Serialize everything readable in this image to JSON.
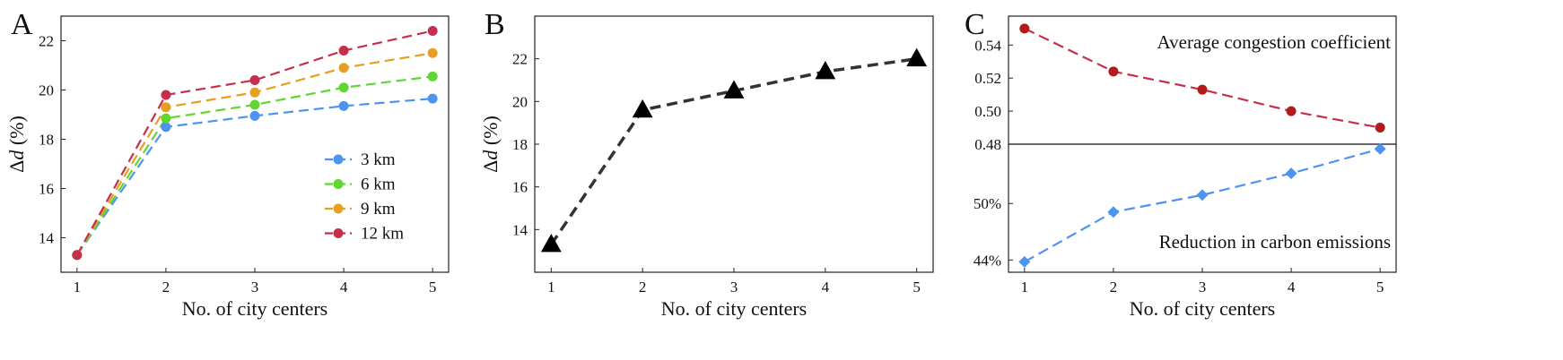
{
  "panels": {
    "A": {
      "letter": "A"
    },
    "B": {
      "letter": "B"
    },
    "C": {
      "letter": "C"
    }
  },
  "chart_data": [
    {
      "id": "A",
      "type": "line",
      "x": [
        1,
        2,
        3,
        4,
        5
      ],
      "xticks": [
        "1",
        "2",
        "3",
        "4",
        "5"
      ],
      "xlabel": "No. of city centers",
      "ylabel": "Δd (%)",
      "yticks": [
        "14",
        "16",
        "18",
        "20",
        "22"
      ],
      "ylim": [
        12.6,
        23.0
      ],
      "series": [
        {
          "name": "3 km",
          "color": "#4d94f0",
          "values": [
            13.3,
            18.5,
            18.95,
            19.35,
            19.65
          ]
        },
        {
          "name": "6 km",
          "color": "#5fd632",
          "values": [
            13.3,
            18.85,
            19.4,
            20.1,
            20.55
          ]
        },
        {
          "name": "9 km",
          "color": "#e69f20",
          "values": [
            13.3,
            19.3,
            19.9,
            20.9,
            21.5
          ]
        },
        {
          "name": "12 km",
          "color": "#c4304c",
          "values": [
            13.3,
            19.8,
            20.4,
            21.6,
            22.4
          ]
        }
      ],
      "legend_position": "lower-right",
      "grid": false
    },
    {
      "id": "B",
      "type": "line",
      "x": [
        1,
        2,
        3,
        4,
        5
      ],
      "xticks": [
        "1",
        "2",
        "3",
        "4",
        "5"
      ],
      "xlabel": "No. of city centers",
      "ylabel": "Δd (%)",
      "yticks": [
        "14",
        "16",
        "18",
        "20",
        "22"
      ],
      "ylim": [
        12.0,
        24.0
      ],
      "series": [
        {
          "color": "#333333",
          "marker": "triangle",
          "values": [
            13.3,
            19.6,
            20.5,
            21.4,
            22.0
          ]
        }
      ],
      "grid": false
    },
    {
      "id": "C-top",
      "type": "line",
      "x": [
        1,
        2,
        3,
        4,
        5
      ],
      "annotation": "Average congestion coefficient",
      "yticks": [
        "0.48",
        "0.50",
        "0.52",
        "0.54"
      ],
      "ylim": [
        0.48,
        0.5575
      ],
      "series": [
        {
          "color": "#c4304c",
          "marker": "circle",
          "values": [
            0.55,
            0.524,
            0.513,
            0.5,
            0.49
          ]
        }
      ],
      "grid": false
    },
    {
      "id": "C-bottom",
      "type": "line",
      "x": [
        1,
        2,
        3,
        4,
        5
      ],
      "xticks": [
        "1",
        "2",
        "3",
        "4",
        "5"
      ],
      "xlabel": "No. of city centers",
      "annotation": "Reduction in carbon emissions",
      "yticks": [
        "44%",
        "50%"
      ],
      "ytick_values": [
        44,
        50
      ],
      "ylim": [
        42.7,
        56.3
      ],
      "series": [
        {
          "color": "#4d94f0",
          "marker": "diamond",
          "values": [
            43.8,
            49.1,
            50.9,
            53.2,
            55.8
          ]
        }
      ],
      "grid": false
    }
  ]
}
